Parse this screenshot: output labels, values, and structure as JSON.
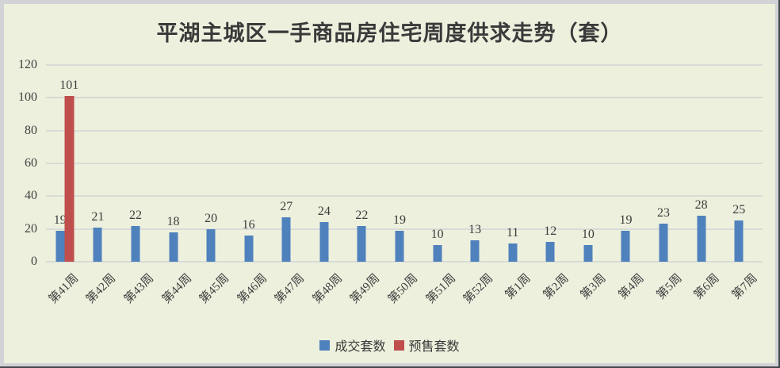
{
  "page": {
    "background": "#ecf0dd",
    "frame_color": "#d2d3d6",
    "grid_color": "#d9dbd6",
    "text_color": "#3f3f3f"
  },
  "chart_data": {
    "type": "bar",
    "title": "平湖主城区一手商品房住宅周度供求走势（套）",
    "categories": [
      "第41周",
      "第42周",
      "第43周",
      "第44周",
      "第45周",
      "第46周",
      "第47周",
      "第48周",
      "第49周",
      "第50周",
      "第51周",
      "第52周",
      "第1周",
      "第2周",
      "第3周",
      "第4周",
      "第5周",
      "第6周",
      "第7周"
    ],
    "series": [
      {
        "name": "成交套数",
        "color": "#4f81bd",
        "values": [
          19,
          21,
          22,
          18,
          20,
          16,
          27,
          24,
          22,
          19,
          10,
          13,
          11,
          12,
          10,
          19,
          23,
          28,
          25
        ]
      },
      {
        "name": "预售套数",
        "color": "#bf4e4c",
        "values": [
          101,
          null,
          null,
          null,
          null,
          null,
          null,
          null,
          null,
          null,
          null,
          null,
          null,
          null,
          null,
          null,
          null,
          null,
          null
        ]
      }
    ],
    "ylim": [
      0,
      120
    ],
    "yticks": [
      0,
      20,
      40,
      60,
      80,
      100,
      120
    ],
    "grid": true,
    "data_labels": true,
    "legend_position": "bottom",
    "xlabel": "",
    "ylabel": ""
  }
}
